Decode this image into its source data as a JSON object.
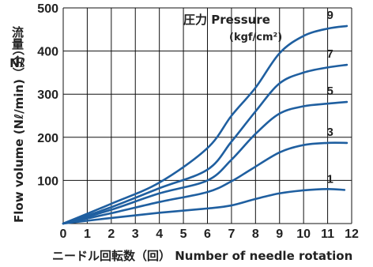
{
  "chart_data": {
    "type": "line",
    "title": "",
    "xlabel": "ニードル回転数（回） Number of needle rotation",
    "ylabel": "Flow volume (Nℓ/min)（分）",
    "ylabel_jp": "流量",
    "ylabel_jp_unit": "Nℓ",
    "xlim": [
      0,
      12
    ],
    "ylim": [
      0,
      500
    ],
    "x_ticks": [
      "0",
      "1",
      "2",
      "3",
      "4",
      "5",
      "6",
      "7",
      "8",
      "9",
      "10",
      "11",
      "12"
    ],
    "y_ticks": [
      "100",
      "200",
      "300",
      "400",
      "500"
    ],
    "grid": true,
    "legend_title": "圧力 Pressure",
    "legend_unit": "(kgf/cm²)",
    "series": [
      {
        "name": "1",
        "x": [
          0,
          2,
          4,
          6,
          7,
          8,
          9,
          10,
          11,
          11.7
        ],
        "y": [
          0,
          13,
          25,
          35,
          42,
          57,
          70,
          77,
          80,
          78
        ]
      },
      {
        "name": "3",
        "x": [
          0,
          2,
          4,
          6,
          7,
          7.8,
          9,
          10,
          11,
          11.8
        ],
        "y": [
          0,
          24,
          50,
          73,
          98,
          125,
          165,
          182,
          187,
          187
        ]
      },
      {
        "name": "5",
        "x": [
          0,
          2,
          4,
          6,
          7,
          8,
          9,
          10,
          11,
          11.8
        ],
        "y": [
          0,
          32,
          70,
          100,
          148,
          208,
          255,
          272,
          278,
          282
        ]
      },
      {
        "name": "7",
        "x": [
          0,
          2,
          4,
          6,
          7,
          8,
          9,
          10,
          11,
          11.8
        ],
        "y": [
          0,
          38,
          82,
          125,
          190,
          260,
          325,
          350,
          362,
          368
        ]
      },
      {
        "name": "9",
        "x": [
          0,
          2,
          4,
          6,
          7,
          8,
          9,
          10,
          11,
          11.8
        ],
        "y": [
          0,
          46,
          95,
          175,
          250,
          315,
          395,
          435,
          452,
          458
        ]
      }
    ]
  }
}
